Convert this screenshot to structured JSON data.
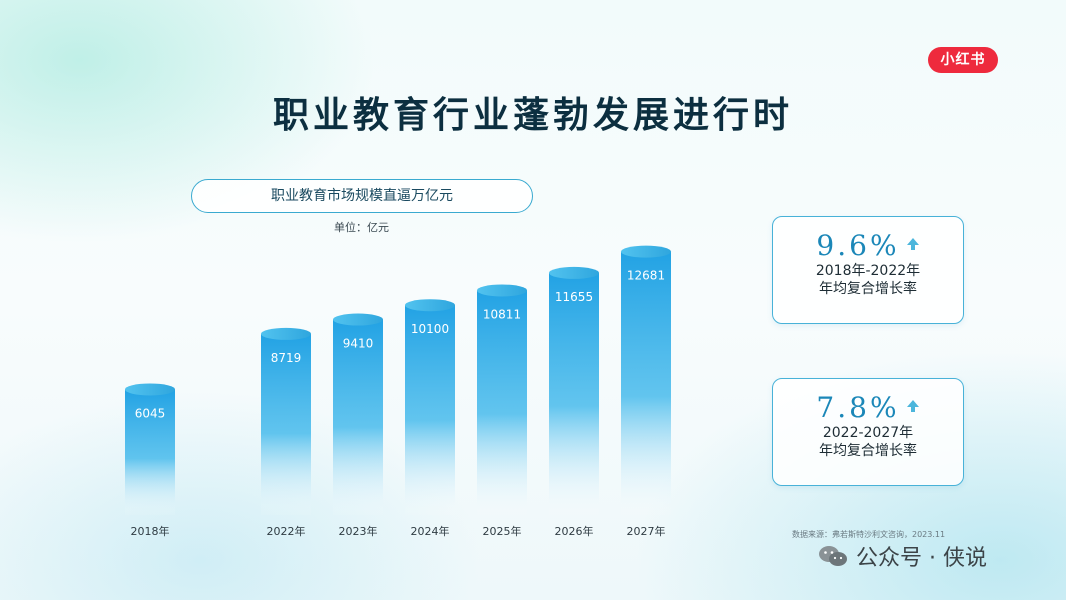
{
  "brand": {
    "label": "小红书"
  },
  "title": "职业教育行业蓬勃发展进行时",
  "subtitle": "职业教育市场规模直逼万亿元",
  "unit_label": "单位：亿元",
  "chart_data": {
    "type": "bar",
    "title": "职业教育市场规模直逼万亿元",
    "categories": [
      "2018年",
      "2022年",
      "2023年",
      "2024年",
      "2025年",
      "2026年",
      "2027年"
    ],
    "values": [
      6045,
      8719,
      9410,
      10100,
      10811,
      11655,
      12681
    ],
    "ylabel": "单位：亿元",
    "xlabel": "",
    "ylim": [
      0,
      13000
    ],
    "grid": false,
    "bar_color": "#21a3e3"
  },
  "cards": [
    {
      "value": "9.6%",
      "line1": "2018年-2022年",
      "line2": "年均复合增长率"
    },
    {
      "value": "7.8%",
      "line1": "2022-2027年",
      "line2": "年均复合增长率"
    }
  ],
  "source": "数据来源：弗若斯特沙利文咨询，2023.11",
  "watermark": "公众号 · 侠说",
  "colors": {
    "accent": "#21a3e3",
    "title": "#0c2f40",
    "brand": "#ee2a3d",
    "border": "#48b2d8"
  }
}
